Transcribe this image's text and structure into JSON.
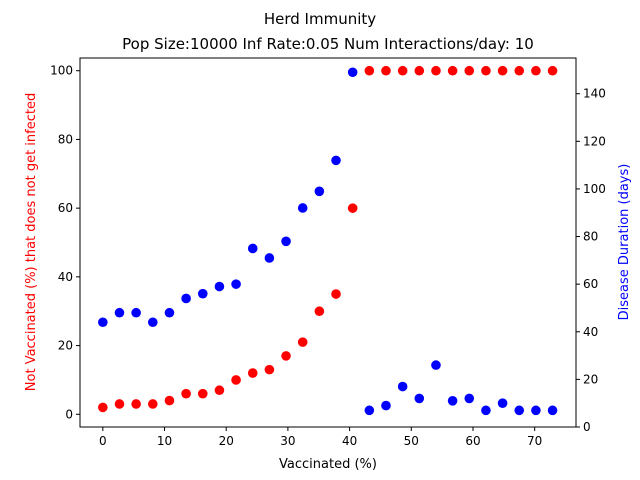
{
  "chart_data": {
    "type": "scatter",
    "title": "Herd Immunity",
    "subtitle": "Pop Size:10000 Inf Rate:0.05 Num Interactions/day: 10",
    "xlabel": "Vaccinated (%)",
    "ylabel_left": "Not Vaccinated (%) that does not get infected",
    "ylabel_right": "Disease Duration (days)",
    "xlim": [
      -3.7,
      76.7
    ],
    "ylim_left": [
      -3.7,
      103.7
    ],
    "ylim_right": [
      0,
      155
    ],
    "x_ticks": [
      0,
      10,
      20,
      30,
      40,
      50,
      60,
      70
    ],
    "y_left_ticks": [
      0,
      20,
      40,
      60,
      80,
      100
    ],
    "y_right_ticks": [
      0,
      20,
      40,
      60,
      80,
      100,
      120,
      140
    ],
    "colors": {
      "left": "#ff0000",
      "right": "#0000ff"
    },
    "grid": false,
    "series": [
      {
        "axis": "left",
        "color": "#ff0000",
        "x": [
          0,
          2.7,
          5.4,
          8.1,
          10.8,
          13.5,
          16.2,
          18.9,
          21.6,
          24.3,
          27.0,
          29.7,
          32.4,
          35.1,
          37.8,
          40.5,
          43.2,
          45.9,
          48.6,
          51.3,
          54.0,
          56.7,
          59.4,
          62.1,
          64.8,
          67.5,
          70.2,
          72.9
        ],
        "y": [
          2,
          3,
          3,
          3,
          4,
          6,
          6,
          7,
          10,
          12,
          13,
          17,
          21,
          30,
          35,
          60,
          100,
          100,
          100,
          100,
          100,
          100,
          100,
          100,
          100,
          100,
          100,
          100
        ]
      },
      {
        "axis": "right",
        "color": "#0000ff",
        "x": [
          0,
          2.7,
          5.4,
          8.1,
          10.8,
          13.5,
          16.2,
          18.9,
          21.6,
          24.3,
          27.0,
          29.7,
          32.4,
          35.1,
          37.8,
          40.5,
          43.2,
          45.9,
          48.6,
          51.3,
          54.0,
          56.7,
          59.4,
          62.1,
          64.8,
          67.5,
          70.2,
          72.9
        ],
        "y": [
          44,
          48,
          48,
          44,
          48,
          54,
          56,
          59,
          60,
          75,
          71,
          78,
          92,
          99,
          112,
          149,
          7,
          9,
          17,
          12,
          26,
          11,
          12,
          7,
          10,
          7,
          7,
          7
        ]
      }
    ]
  }
}
